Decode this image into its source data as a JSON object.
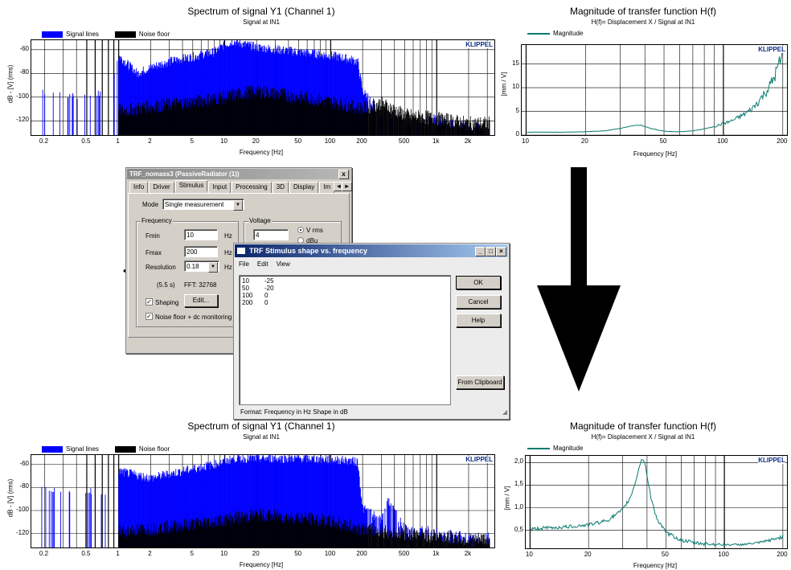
{
  "top_left": {
    "title": "Spectrum of signal Y1 (Channel 1)",
    "subtitle": "Signal at IN1",
    "legend": [
      {
        "label": "Signal lines",
        "color": "#0000ff"
      },
      {
        "label": "Noise floor",
        "color": "#000000"
      }
    ],
    "ylabel": "dB - [V] (rms)",
    "xlabel": "Frequency [Hz]",
    "brand": "KLIPPEL"
  },
  "top_right": {
    "title": "Magnitude of transfer function H(f)",
    "subtitle": "H(f)= Displacement X / Signal at IN1",
    "legend": "Magnitude",
    "ylabel": "[mm / V]",
    "xlabel": "Frequency [Hz]",
    "brand": "KLIPPEL"
  },
  "bottom_left": {
    "title": "Spectrum of signal Y1 (Channel 1)",
    "subtitle": "Signal at IN1",
    "legend": [
      {
        "label": "Signal lines",
        "color": "#0000ff"
      },
      {
        "label": "Noise floor",
        "color": "#000000"
      }
    ],
    "ylabel": "dB - [V] (rms)",
    "xlabel": "Frequency [Hz]",
    "brand": "KLIPPEL"
  },
  "bottom_right": {
    "title": "Magnitude of transfer function H(f)",
    "subtitle": "H(f)= Displacement X / Signal at IN1",
    "legend": "Magnitude",
    "ylabel": "[mm / V]",
    "xlabel": "Frequency [Hz]",
    "brand": "KLIPPEL"
  },
  "chart_data": [
    {
      "type": "bar",
      "title": "Spectrum of signal Y1 (Channel 1)",
      "subtitle": "Signal at IN1",
      "xlabel": "Frequency [Hz]",
      "ylabel": "dB - [V] (rms)",
      "xscale": "log",
      "xlim": [
        0.15,
        3500
      ],
      "ylim": [
        -132,
        -52
      ],
      "xticks": [
        "0.2",
        "0.5",
        "1",
        "2",
        "5",
        "10",
        "20",
        "50",
        "100",
        "200",
        "500",
        "1k",
        "2k"
      ],
      "yticks": [
        "-60",
        "-80",
        "-100",
        "-120"
      ],
      "series": [
        {
          "name": "Signal lines",
          "x": [
            0.2,
            0.4,
            0.6,
            0.8,
            1,
            1.5,
            2,
            3,
            5,
            8,
            10,
            12,
            20,
            50,
            100,
            150,
            180,
            200,
            300,
            500,
            1000,
            2000
          ],
          "values": [
            -95,
            -98,
            -97,
            -100,
            -65,
            -80,
            -75,
            -70,
            -66,
            -62,
            -56,
            -53,
            -58,
            -62,
            -65,
            -68,
            -70,
            -95,
            -112,
            -120,
            -118,
            -125
          ]
        },
        {
          "name": "Noise floor",
          "x": [
            1,
            2,
            5,
            10,
            20,
            50,
            100,
            200,
            300,
            500,
            1000,
            2000
          ],
          "values": [
            -112,
            -108,
            -104,
            -100,
            -95,
            -100,
            -104,
            -110,
            -105,
            -115,
            -118,
            -122
          ]
        }
      ],
      "grid": true,
      "legend": "top-left"
    },
    {
      "type": "line",
      "title": "Magnitude of transfer function H(f)",
      "subtitle": "H(f)= Displacement X / Signal at IN1",
      "xlabel": "Frequency [Hz]",
      "ylabel": "[mm / V]",
      "xscale": "log",
      "xlim": [
        9.5,
        210
      ],
      "ylim": [
        0,
        19
      ],
      "xticks": [
        "10",
        "20",
        "50",
        "100",
        "200"
      ],
      "yticks": [
        "0",
        "5",
        "10",
        "15"
      ],
      "series": [
        {
          "name": "Magnitude",
          "x": [
            10,
            15,
            20,
            25,
            30,
            35,
            38,
            42,
            50,
            60,
            70,
            80,
            90,
            100,
            110,
            120,
            130,
            140,
            150,
            160,
            170,
            180,
            190,
            200
          ],
          "values": [
            0.6,
            0.6,
            0.7,
            0.9,
            1.4,
            2.0,
            2.1,
            1.5,
            0.8,
            0.7,
            0.9,
            1.3,
            1.8,
            2.4,
            3.0,
            3.8,
            4.6,
            5.6,
            7.0,
            8.5,
            10.0,
            12.0,
            14.5,
            17.0
          ]
        }
      ],
      "grid": true,
      "legend": "top-left"
    },
    {
      "type": "bar",
      "title": "Spectrum of signal Y1 (Channel 1)",
      "subtitle": "Signal at IN1",
      "xlabel": "Frequency [Hz]",
      "ylabel": "dB - [V] (rms)",
      "xscale": "log",
      "xlim": [
        0.15,
        3500
      ],
      "ylim": [
        -132,
        -52
      ],
      "xticks": [
        "0.2",
        "0.5",
        "1",
        "2",
        "5",
        "10",
        "20",
        "50",
        "100",
        "200",
        "500",
        "1k",
        "2k"
      ],
      "yticks": [
        "-60",
        "-80",
        "-100",
        "-120"
      ],
      "series": [
        {
          "name": "Signal lines",
          "x": [
            0.2,
            0.4,
            0.6,
            0.8,
            1,
            2,
            5,
            10,
            12,
            20,
            50,
            100,
            150,
            180,
            200,
            300,
            350,
            500,
            1000,
            2000
          ],
          "values": [
            -80,
            -82,
            -85,
            -88,
            -66,
            -72,
            -64,
            -58,
            -55,
            -55,
            -55,
            -56,
            -57,
            -58,
            -98,
            -108,
            -92,
            -115,
            -118,
            -123
          ]
        },
        {
          "name": "Noise floor",
          "x": [
            1,
            2,
            5,
            10,
            20,
            50,
            100,
            200,
            500,
            1000,
            2000
          ],
          "values": [
            -118,
            -116,
            -112,
            -108,
            -104,
            -106,
            -110,
            -116,
            -120,
            -122,
            -125
          ]
        }
      ],
      "grid": true,
      "legend": "top-left"
    },
    {
      "type": "line",
      "title": "Magnitude of transfer function H(f)",
      "subtitle": "H(f)= Displacement X / Signal at IN1",
      "xlabel": "Frequency [Hz]",
      "ylabel": "[mm / V]",
      "xscale": "log",
      "xlim": [
        9.5,
        210
      ],
      "ylim": [
        0.1,
        2.15
      ],
      "xticks": [
        "10",
        "20",
        "50",
        "100",
        "200"
      ],
      "yticks": [
        "0,5",
        "1,0",
        "1,5",
        "2,0"
      ],
      "series": [
        {
          "name": "Magnitude",
          "x": [
            10,
            12,
            15,
            20,
            25,
            30,
            33,
            35,
            37,
            38,
            39,
            40,
            42,
            45,
            50,
            60,
            70,
            80,
            100,
            120,
            150,
            180,
            200
          ],
          "values": [
            0.52,
            0.55,
            0.57,
            0.62,
            0.72,
            0.95,
            1.25,
            1.6,
            2.0,
            2.1,
            2.0,
            1.7,
            1.2,
            0.75,
            0.45,
            0.28,
            0.22,
            0.2,
            0.18,
            0.18,
            0.22,
            0.3,
            0.36
          ]
        }
      ],
      "grid": true,
      "legend": "top-left"
    }
  ],
  "trf_window": {
    "title": "TRF_nomass3 (PassiveRadiator (1))",
    "close": "x",
    "tabs": [
      "Info",
      "Driver",
      "Stimulus",
      "Input",
      "Processing",
      "3D",
      "Display",
      "Im"
    ],
    "mode_label": "Mode",
    "mode_value": "Single measurement",
    "frequency_group": "Frequency",
    "fmin_label": "Fmin",
    "fmin_value": "10",
    "fmax_label": "Fmax",
    "fmax_value": "200",
    "resolution_label": "Resolution",
    "resolution_value": "0.18",
    "unit_hz": "Hz",
    "duration": "(5.5 s)",
    "fft": "FFT:  32768",
    "voltage_group": "Voltage",
    "voltage_value": "4",
    "radio_vrms": "V rms",
    "radio_dbu": "dBu",
    "shaping_label": "Shaping",
    "edit_button": "Edit...",
    "noise_label": "Noise floor + dc  monitoring",
    "check_mark": "✓"
  },
  "shape_window": {
    "title": "TRF Stimulus shape vs. frequency",
    "menu": [
      "File",
      "Edit",
      "View"
    ],
    "rows": [
      [
        "10",
        "-25"
      ],
      [
        "50",
        "-20"
      ],
      [
        "100",
        "0"
      ],
      [
        "200",
        "0"
      ]
    ],
    "ok": "OK",
    "cancel": "Cancel",
    "help": "Help",
    "from_clipboard": "From Clipboard",
    "format_text": "Format:   Frequency in Hz   Shape in dB"
  }
}
